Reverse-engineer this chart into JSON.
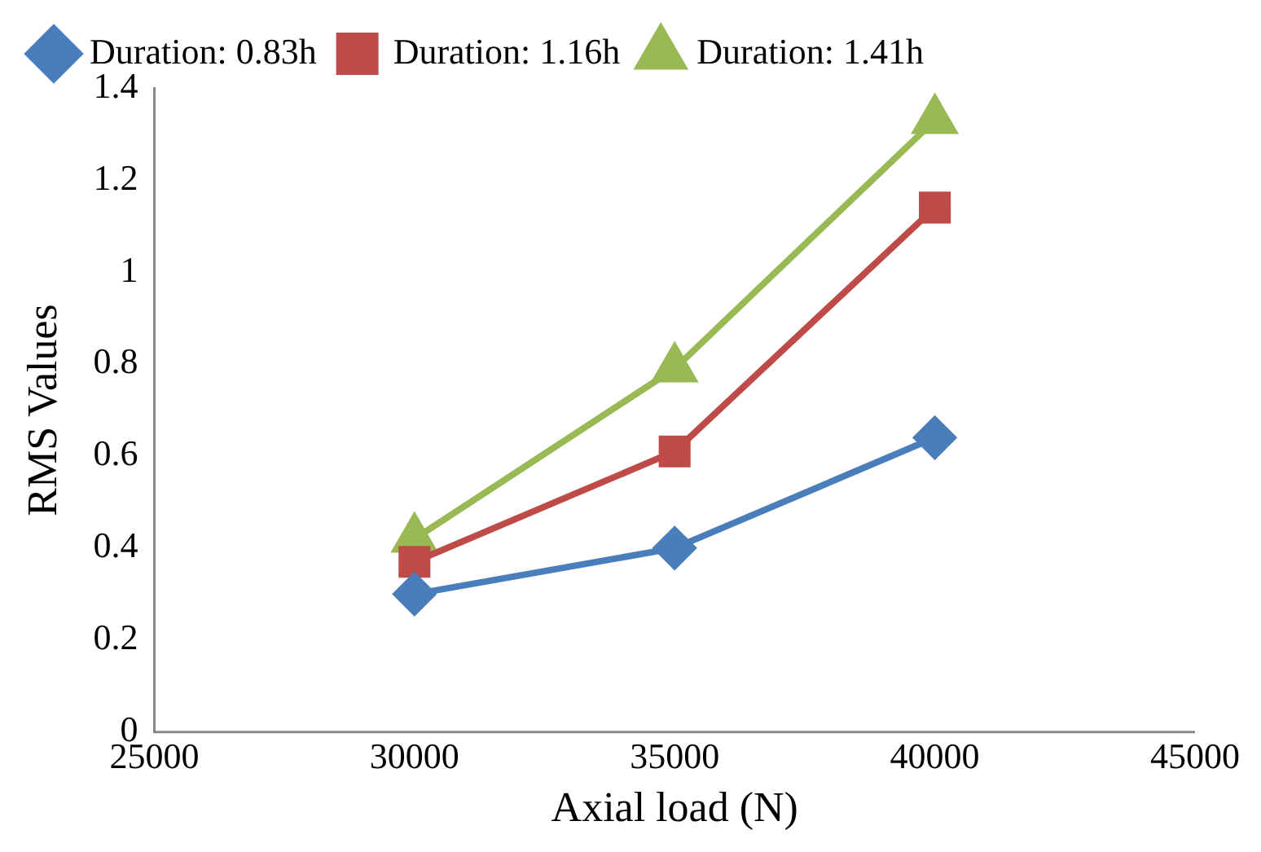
{
  "chart_data": {
    "type": "line",
    "xlabel": "Axial load (N)",
    "ylabel": "RMS Values",
    "xlim": [
      25000,
      45000
    ],
    "xticks": [
      25000,
      30000,
      35000,
      40000,
      45000
    ],
    "ylim": [
      0,
      1.4
    ],
    "yticks": [
      0,
      0.2,
      0.4,
      0.6,
      0.8,
      1,
      1.2,
      1.4
    ],
    "grid": false,
    "legend": "top",
    "series": [
      {
        "name": "Duration: 0.83h",
        "color": "#4a7ebb",
        "marker": "diamond",
        "x": [
          30000,
          35000,
          40000
        ],
        "values": [
          0.3,
          0.4,
          0.64
        ]
      },
      {
        "name": "Duration: 1.16h",
        "color": "#be4b48",
        "marker": "square",
        "x": [
          30000,
          35000,
          40000
        ],
        "values": [
          0.37,
          0.61,
          1.14
        ]
      },
      {
        "name": "Duration: 1.41h",
        "color": "#98b954",
        "marker": "triangle",
        "x": [
          30000,
          35000,
          40000
        ],
        "values": [
          0.42,
          0.79,
          1.33
        ]
      }
    ]
  }
}
